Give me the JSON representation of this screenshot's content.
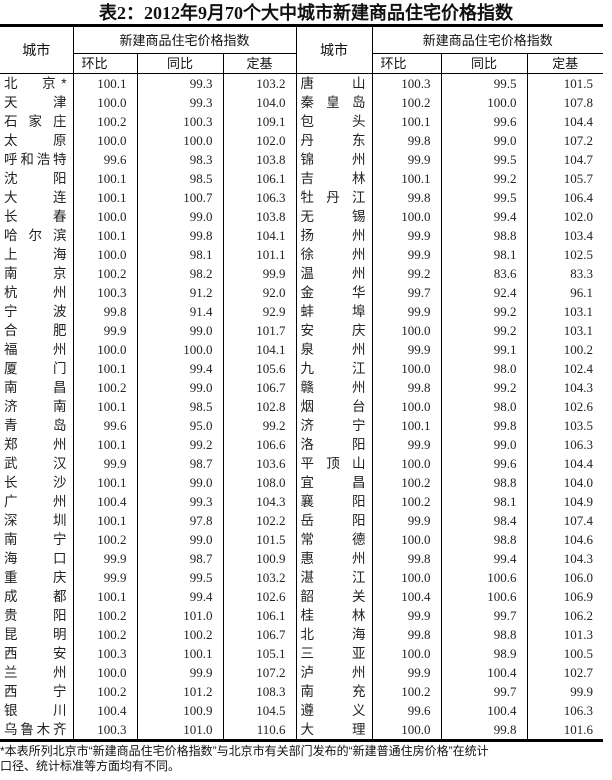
{
  "title": "表2：2012年9月70个大中城市新建商品住宅价格指数",
  "header": {
    "city": "城市",
    "group": "新建商品住宅价格指数",
    "cols": [
      "环比",
      "同比",
      "定基"
    ]
  },
  "left": [
    [
      "北　京*",
      "100.1",
      "99.3",
      "103.2"
    ],
    [
      "天　津",
      "100.0",
      "99.3",
      "104.0"
    ],
    [
      "石家庄",
      "100.2",
      "100.3",
      "109.1"
    ],
    [
      "太　原",
      "100.0",
      "100.0",
      "102.0"
    ],
    [
      "呼和浩特",
      "99.6",
      "98.3",
      "103.8"
    ],
    [
      "沈　阳",
      "100.1",
      "98.5",
      "106.1"
    ],
    [
      "大　连",
      "100.1",
      "100.7",
      "106.3"
    ],
    [
      "长　春",
      "100.0",
      "99.0",
      "103.8"
    ],
    [
      "哈尔滨",
      "100.1",
      "99.8",
      "104.1"
    ],
    [
      "上　海",
      "100.0",
      "98.1",
      "101.1"
    ],
    [
      "南　京",
      "100.2",
      "98.2",
      "99.9"
    ],
    [
      "杭　州",
      "100.3",
      "91.2",
      "92.0"
    ],
    [
      "宁　波",
      "99.8",
      "91.4",
      "92.9"
    ],
    [
      "合　肥",
      "99.9",
      "99.0",
      "101.7"
    ],
    [
      "福　州",
      "100.0",
      "100.0",
      "104.1"
    ],
    [
      "厦　门",
      "100.1",
      "99.4",
      "105.6"
    ],
    [
      "南　昌",
      "100.2",
      "99.0",
      "106.7"
    ],
    [
      "济　南",
      "100.1",
      "98.5",
      "102.8"
    ],
    [
      "青　岛",
      "99.6",
      "95.0",
      "99.2"
    ],
    [
      "郑　州",
      "100.1",
      "99.2",
      "106.6"
    ],
    [
      "武　汉",
      "99.9",
      "98.7",
      "103.6"
    ],
    [
      "长　沙",
      "100.1",
      "99.0",
      "108.0"
    ],
    [
      "广　州",
      "100.4",
      "99.3",
      "104.3"
    ],
    [
      "深　圳",
      "100.1",
      "97.8",
      "102.2"
    ],
    [
      "南　宁",
      "100.2",
      "99.0",
      "101.5"
    ],
    [
      "海　口",
      "99.9",
      "98.7",
      "100.9"
    ],
    [
      "重　庆",
      "99.9",
      "99.5",
      "103.2"
    ],
    [
      "成　都",
      "100.1",
      "99.4",
      "102.6"
    ],
    [
      "贵　阳",
      "100.2",
      "101.0",
      "106.1"
    ],
    [
      "昆　明",
      "100.2",
      "100.2",
      "106.7"
    ],
    [
      "西　安",
      "100.3",
      "100.1",
      "105.1"
    ],
    [
      "兰　州",
      "100.0",
      "99.9",
      "107.2"
    ],
    [
      "西　宁",
      "100.2",
      "101.2",
      "108.3"
    ],
    [
      "银　川",
      "100.4",
      "100.9",
      "104.5"
    ],
    [
      "乌鲁木齐",
      "100.3",
      "101.0",
      "110.6"
    ]
  ],
  "right": [
    [
      "唐　山",
      "100.3",
      "99.5",
      "101.5"
    ],
    [
      "秦皇岛",
      "100.2",
      "100.0",
      "107.8"
    ],
    [
      "包　头",
      "100.1",
      "99.6",
      "104.4"
    ],
    [
      "丹　东",
      "99.8",
      "99.0",
      "107.2"
    ],
    [
      "锦　州",
      "99.9",
      "99.5",
      "104.7"
    ],
    [
      "吉　林",
      "100.1",
      "99.2",
      "105.7"
    ],
    [
      "牡丹江",
      "99.8",
      "99.5",
      "106.4"
    ],
    [
      "无　锡",
      "100.0",
      "99.4",
      "102.0"
    ],
    [
      "扬　州",
      "99.9",
      "98.8",
      "103.4"
    ],
    [
      "徐　州",
      "99.9",
      "98.1",
      "102.5"
    ],
    [
      "温　州",
      "99.2",
      "83.6",
      "83.3"
    ],
    [
      "金　华",
      "99.7",
      "92.4",
      "96.1"
    ],
    [
      "蚌　埠",
      "99.9",
      "99.2",
      "103.1"
    ],
    [
      "安　庆",
      "100.0",
      "99.2",
      "103.1"
    ],
    [
      "泉　州",
      "99.9",
      "99.1",
      "100.2"
    ],
    [
      "九　江",
      "100.0",
      "98.0",
      "102.4"
    ],
    [
      "赣　州",
      "99.8",
      "99.2",
      "104.3"
    ],
    [
      "烟　台",
      "100.0",
      "98.0",
      "102.6"
    ],
    [
      "济　宁",
      "100.1",
      "99.8",
      "103.5"
    ],
    [
      "洛　阳",
      "99.9",
      "99.0",
      "106.3"
    ],
    [
      "平顶山",
      "100.0",
      "99.6",
      "104.4"
    ],
    [
      "宜　昌",
      "100.2",
      "98.8",
      "104.0"
    ],
    [
      "襄　阳",
      "100.2",
      "98.1",
      "104.9"
    ],
    [
      "岳　阳",
      "99.9",
      "98.4",
      "107.4"
    ],
    [
      "常　德",
      "100.0",
      "98.8",
      "104.6"
    ],
    [
      "惠　州",
      "99.8",
      "99.4",
      "104.3"
    ],
    [
      "湛　江",
      "100.0",
      "100.6",
      "106.0"
    ],
    [
      "韶　关",
      "100.4",
      "100.6",
      "106.9"
    ],
    [
      "桂　林",
      "99.9",
      "99.7",
      "106.2"
    ],
    [
      "北　海",
      "99.8",
      "98.8",
      "101.3"
    ],
    [
      "三　亚",
      "100.0",
      "98.9",
      "100.5"
    ],
    [
      "泸　州",
      "99.9",
      "100.4",
      "102.7"
    ],
    [
      "南　充",
      "100.2",
      "99.7",
      "99.9"
    ],
    [
      "遵　义",
      "99.6",
      "100.4",
      "106.3"
    ],
    [
      "大　理",
      "100.0",
      "99.8",
      "101.6"
    ]
  ],
  "footnote": [
    "*本表所列北京市“新建商品住宅价格指数”与北京市有关部门发布的“新建普通住房价格”在统计",
    "口径、统计标准等方面均有不同。"
  ]
}
